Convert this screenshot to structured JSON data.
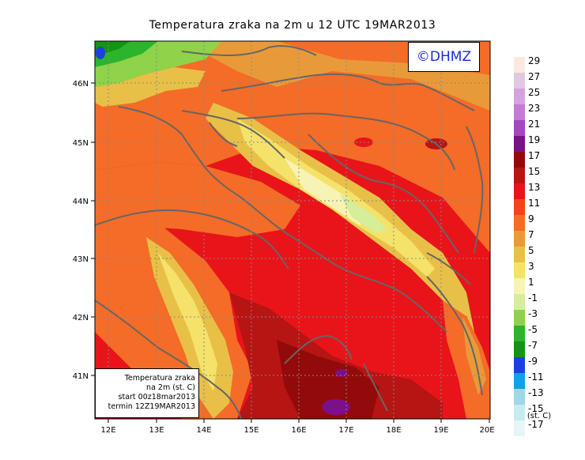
{
  "title": "Temperatura zraka na 2m u 12 UTC 19MAR2013",
  "logo_text": "©DHMZ",
  "info_box": {
    "line1": "Temperatura zraka",
    "line2": "na 2m (st. C)",
    "line3": "start 00z18mar2013",
    "line4": "termin 12Z19MAR2013"
  },
  "x_ticks": [
    "12E",
    "13E",
    "14E",
    "15E",
    "16E",
    "17E",
    "18E",
    "19E",
    "20E"
  ],
  "y_ticks": [
    "46N",
    "45N",
    "44N",
    "43N",
    "42N",
    "41N"
  ],
  "legend": {
    "unit": "(st. C)",
    "labels": [
      "29",
      "27",
      "25",
      "23",
      "21",
      "19",
      "17",
      "15",
      "13",
      "11",
      "9",
      "7",
      "5",
      "3",
      "1",
      "-1",
      "-3",
      "-5",
      "-7",
      "-9",
      "-11",
      "-13",
      "-15",
      "-17"
    ],
    "colors": [
      "#fbe9df",
      "#e0c9e0",
      "#d6a2dd",
      "#c57ad6",
      "#a347c2",
      "#7c0f8a",
      "#930a0a",
      "#b71414",
      "#e8141a",
      "#f44418",
      "#f46c27",
      "#e89a3a",
      "#e8c048",
      "#f5e26a",
      "#f7f3b5",
      "#d6ed9a",
      "#8ed34a",
      "#2cb42c",
      "#139413",
      "#1b42e0",
      "#14a0e6",
      "#9fd6e8",
      "#c6ecef",
      "#e6f6f6"
    ]
  }
}
